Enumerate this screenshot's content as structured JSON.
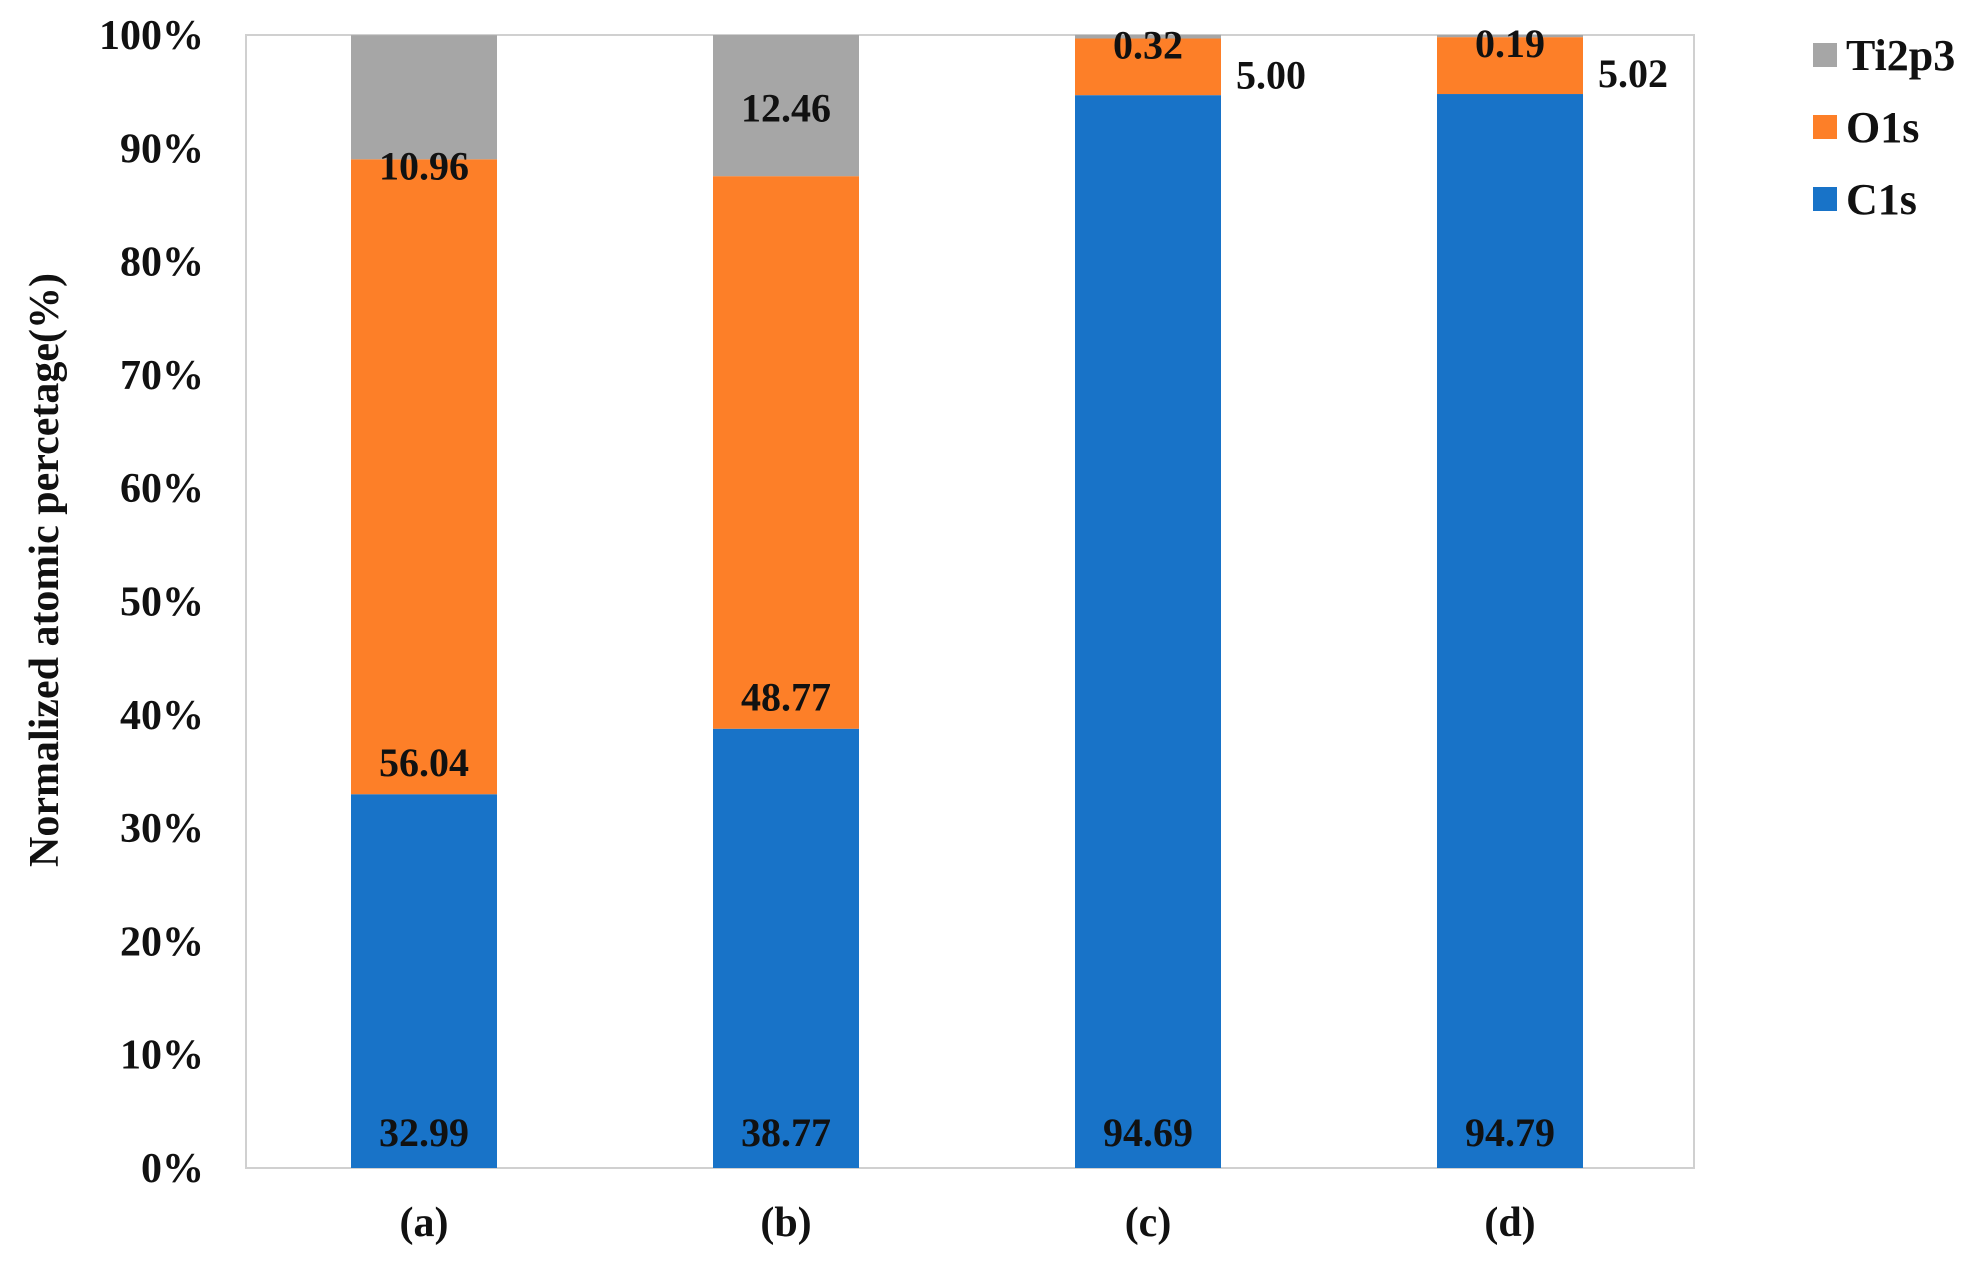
{
  "chart_data": {
    "type": "bar",
    "stacked": true,
    "percent_stacked": true,
    "title": "",
    "xlabel": "",
    "ylabel": "Normalized atomic percetage(%)",
    "ylim": [
      0,
      100
    ],
    "yticks": [
      "0%",
      "10%",
      "20%",
      "30%",
      "40%",
      "50%",
      "60%",
      "70%",
      "80%",
      "90%",
      "100%"
    ],
    "grid": false,
    "legend_position": "top-right",
    "categories": [
      "(a)",
      "(b)",
      "(c)",
      "(d)"
    ],
    "series": [
      {
        "name": "C1s",
        "color": "#1873C8",
        "values": [
          32.99,
          38.77,
          94.69,
          94.79
        ],
        "labels": [
          "32.99",
          "38.77",
          "94.69",
          "94.79"
        ]
      },
      {
        "name": "O1s",
        "color": "#FD7F28",
        "values": [
          56.04,
          48.77,
          5.0,
          5.02
        ],
        "labels": [
          "56.04",
          "48.77",
          "5.00",
          "5.02"
        ]
      },
      {
        "name": "Ti2p3",
        "color": "#A6A6A6",
        "values": [
          10.96,
          12.46,
          0.32,
          0.19
        ],
        "labels": [
          "10.96",
          "12.46",
          "0.32",
          "0.19"
        ]
      }
    ],
    "legend_order": [
      "Ti2p3",
      "O1s",
      "C1s"
    ]
  }
}
